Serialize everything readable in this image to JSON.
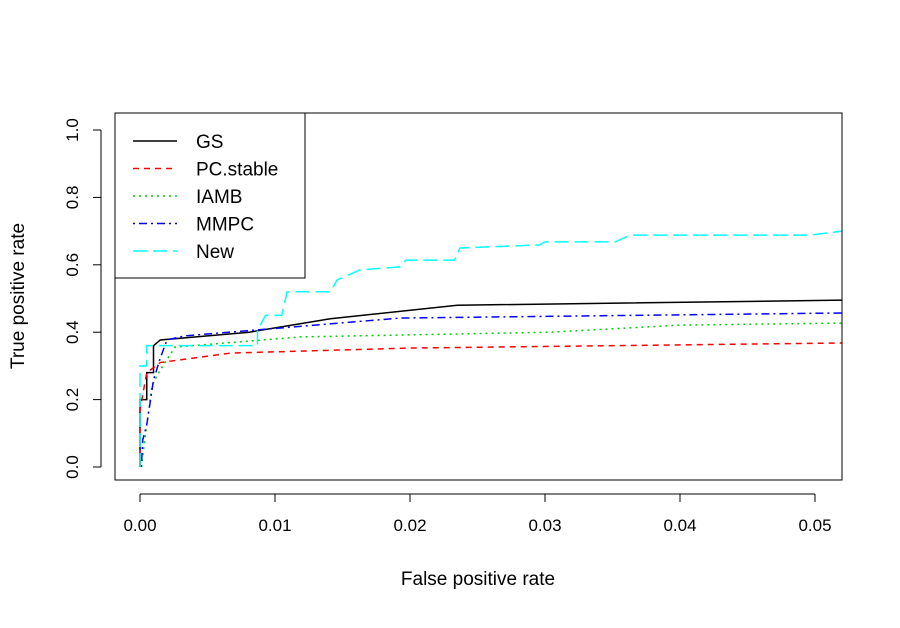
{
  "chart_data": {
    "type": "line",
    "title": "",
    "xlabel": "False positive rate",
    "ylabel": "True positive rate",
    "xlim": [
      -0.0018,
      0.052
    ],
    "ylim": [
      -0.04,
      1.04
    ],
    "xticks": [
      "0.00",
      "0.01",
      "0.02",
      "0.03",
      "0.04",
      "0.05"
    ],
    "xtick_values": [
      0,
      0.01,
      0.02,
      0.03,
      0.04,
      0.05
    ],
    "yticks": [
      "0.0",
      "0.2",
      "0.4",
      "0.6",
      "0.8",
      "1.0"
    ],
    "ytick_values": [
      0,
      0.2,
      0.4,
      0.6,
      0.8,
      1.0
    ],
    "grid": false,
    "legend_position": "top-left",
    "series": [
      {
        "name": "GS",
        "color": "#000000",
        "dash": "solid",
        "x": [
          0,
          0,
          0.0005,
          0.0005,
          0.001,
          0.001,
          0.0015,
          0.0081,
          0.0141,
          0.0235,
          0.052
        ],
        "y": [
          0,
          0.2,
          0.2,
          0.28,
          0.28,
          0.36,
          0.377,
          0.4,
          0.44,
          0.48,
          0.495
        ]
      },
      {
        "name": "PC.stable",
        "color": "#ff0000",
        "dash": "dashed",
        "x": [
          0,
          0,
          0.0005,
          0.0015,
          0.0067,
          0.02,
          0.052
        ],
        "y": [
          0,
          0.17,
          0.28,
          0.31,
          0.338,
          0.353,
          0.368
        ]
      },
      {
        "name": "IAMB",
        "color": "#00cd00",
        "dash": "dotted",
        "x": [
          0.0001,
          0.0005,
          0.0009,
          0.0015,
          0.0026,
          0.0119,
          0.0304,
          0.04,
          0.052
        ],
        "y": [
          0,
          0.125,
          0.243,
          0.288,
          0.356,
          0.386,
          0.4,
          0.421,
          0.427
        ]
      },
      {
        "name": "MMPC",
        "color": "#0000ff",
        "dash": "dotdash",
        "x": [
          0.0001,
          0.0002,
          0.0005,
          0.001,
          0.0015,
          0.002,
          0.0033,
          0.0193,
          0.052
        ],
        "y": [
          0,
          0.08,
          0.125,
          0.258,
          0.323,
          0.377,
          0.389,
          0.442,
          0.457
        ]
      },
      {
        "name": "New",
        "color": "#00ffff",
        "dash": "longdash",
        "x": [
          0,
          0,
          0.0005,
          0.0005,
          0.0087,
          0.0087,
          0.0093,
          0.0105,
          0.0109,
          0.0141,
          0.0146,
          0.0163,
          0.0193,
          0.0197,
          0.0233,
          0.0237,
          0.0296,
          0.03,
          0.0352,
          0.0363,
          0.0496,
          0.052
        ],
        "y": [
          0,
          0.3,
          0.3,
          0.36,
          0.36,
          0.406,
          0.45,
          0.45,
          0.52,
          0.52,
          0.555,
          0.585,
          0.594,
          0.614,
          0.614,
          0.65,
          0.659,
          0.668,
          0.668,
          0.688,
          0.688,
          0.7
        ]
      }
    ]
  }
}
